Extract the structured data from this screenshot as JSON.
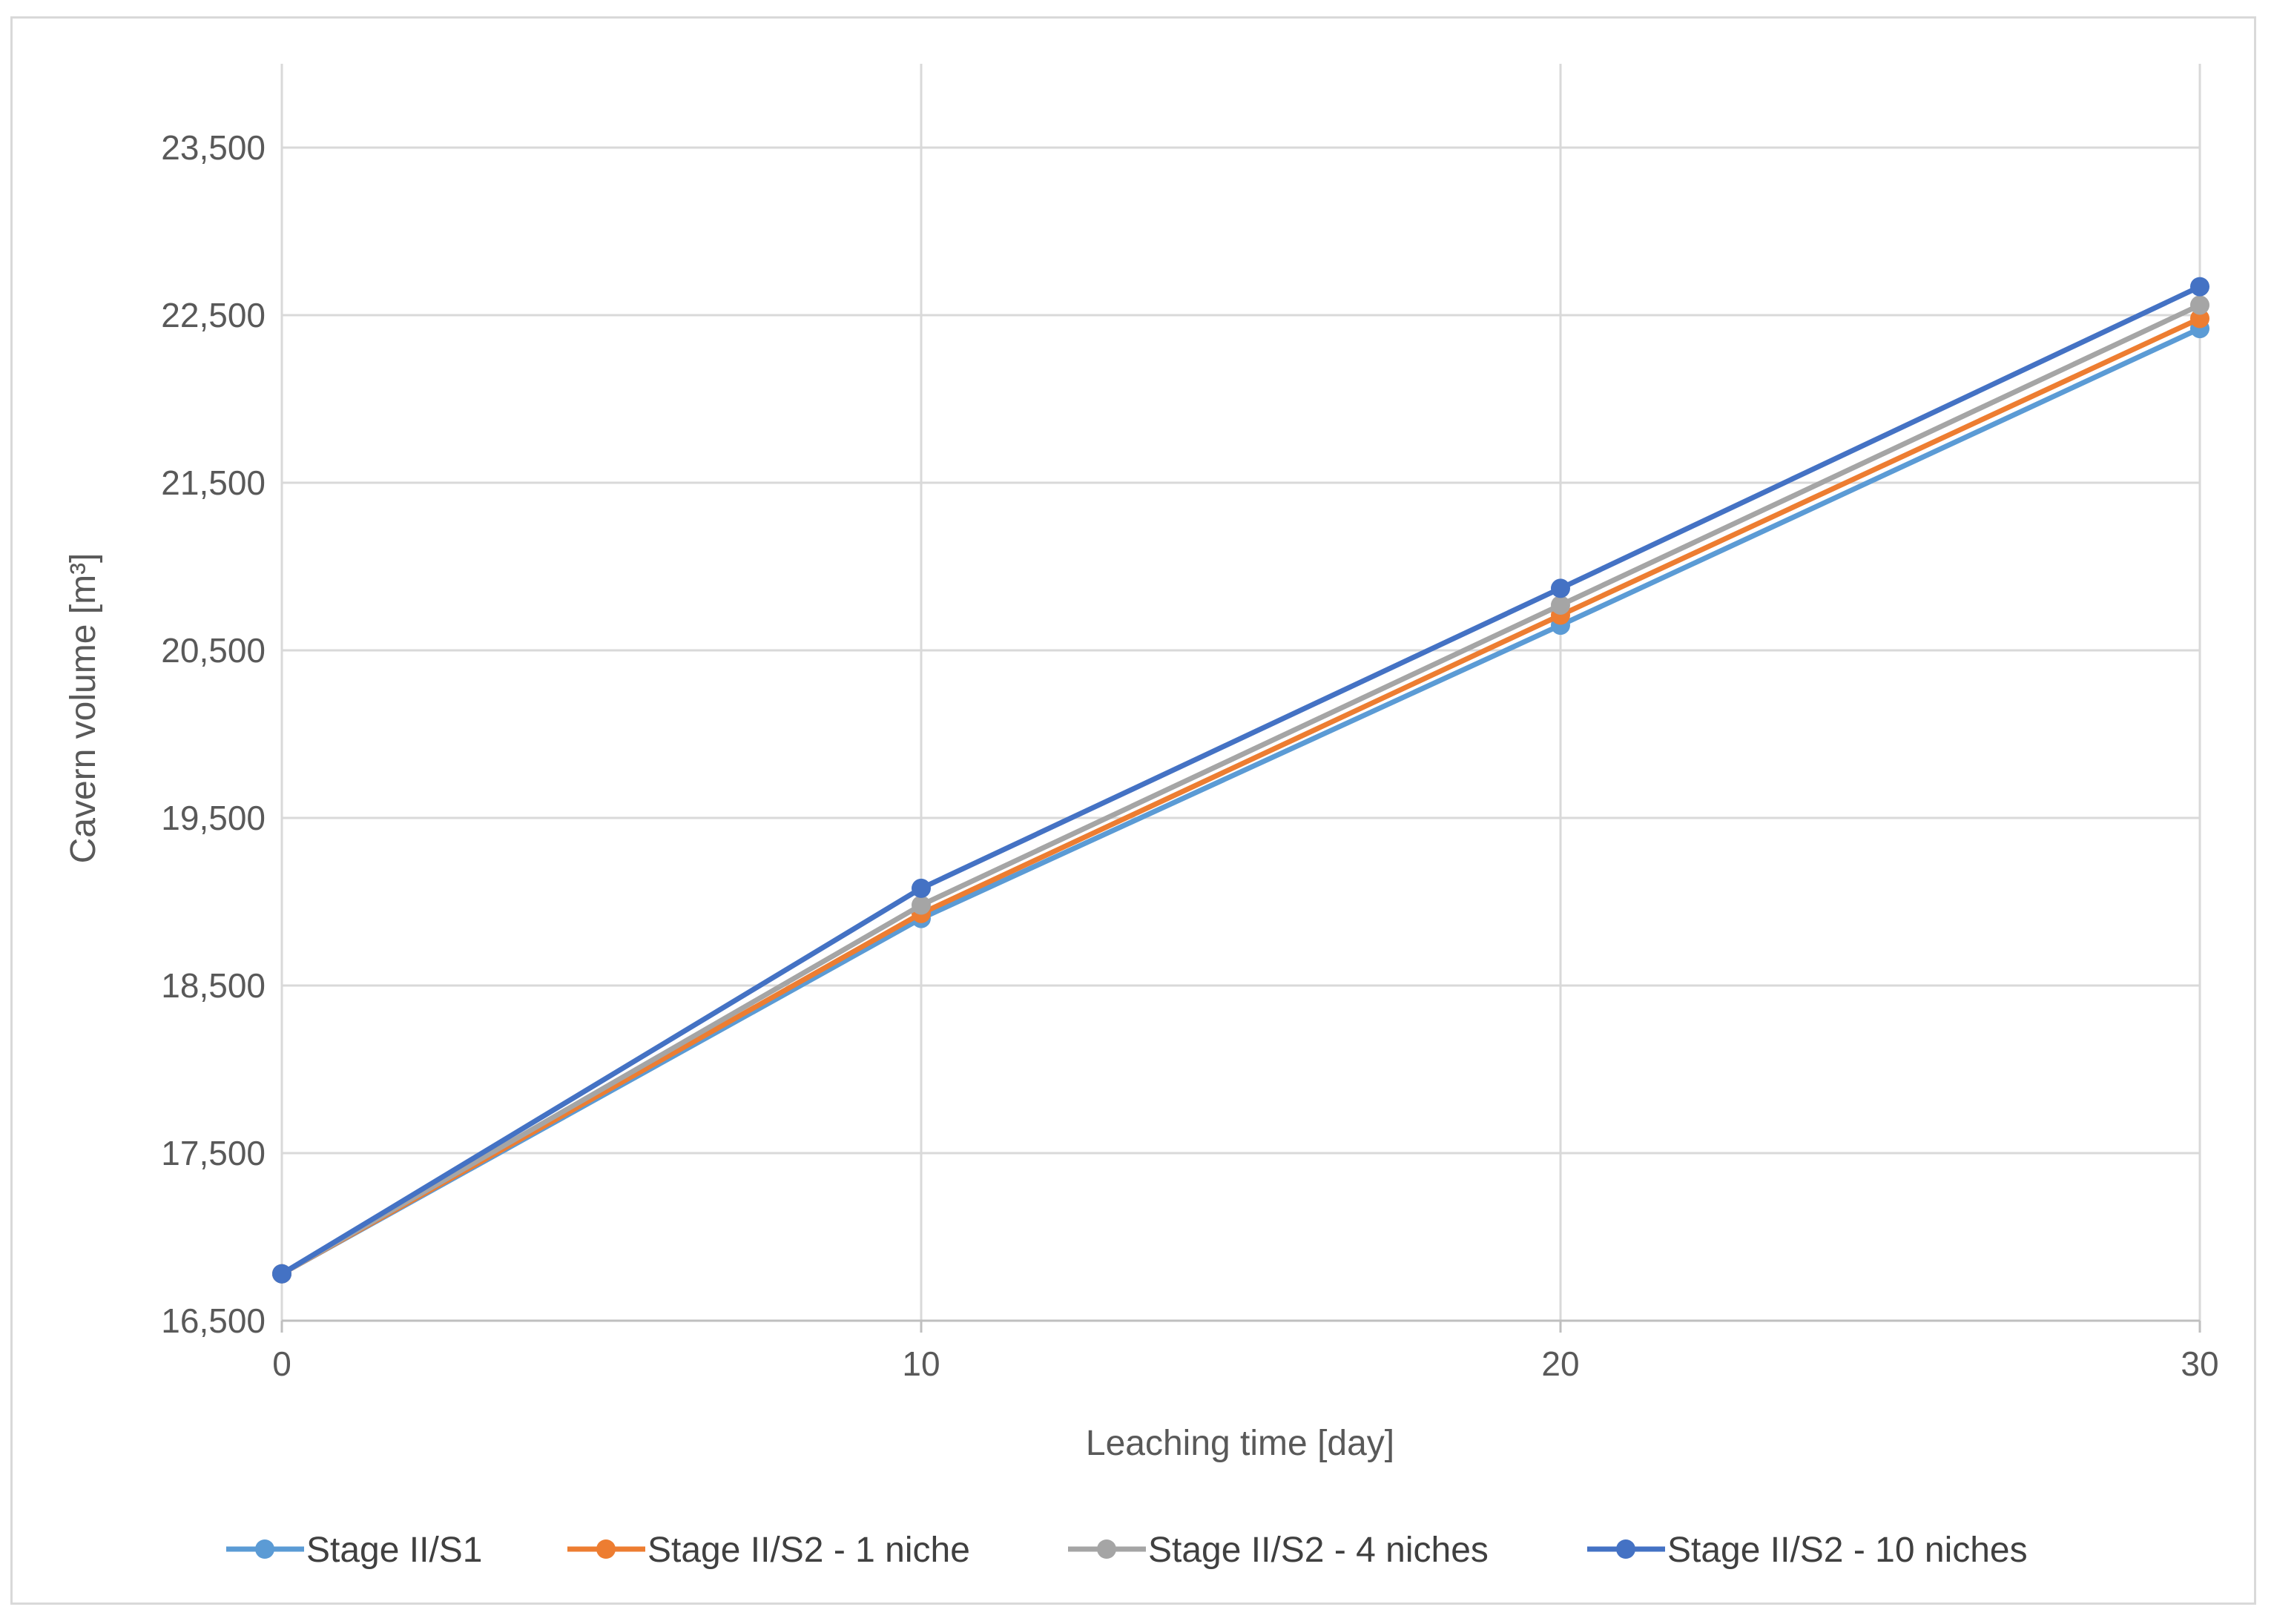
{
  "chart_data": {
    "type": "line",
    "title": "",
    "xlabel": "Leaching time [day]",
    "ylabel": "Cavern volume [m³]",
    "x": [
      0,
      10,
      20,
      30
    ],
    "xlim": [
      0,
      30
    ],
    "ylim": [
      16500,
      24000
    ],
    "x_ticks": [
      0,
      10,
      20,
      30
    ],
    "x_tick_labels": [
      "0",
      "10",
      "20",
      "30"
    ],
    "y_ticks": [
      16500,
      17500,
      18500,
      19500,
      20500,
      21500,
      22500,
      23500
    ],
    "y_tick_labels": [
      "16,500",
      "17,500",
      "18,500",
      "19,500",
      "20,500",
      "21,500",
      "22,500",
      "23,500"
    ],
    "grid": true,
    "legend_position": "bottom",
    "series": [
      {
        "name": "Stage II/S1",
        "color": "#5B9BD5",
        "values": [
          16780,
          18900,
          20650,
          22420
        ]
      },
      {
        "name": "Stage II/S2 - 1 niche",
        "color": "#ED7D31",
        "values": [
          16780,
          18930,
          20710,
          22480
        ]
      },
      {
        "name": "Stage II/S2 - 4 niches",
        "color": "#A5A5A5",
        "values": [
          16780,
          18980,
          20770,
          22560
        ]
      },
      {
        "name": "Stage II/S2 - 10 niches",
        "color": "#4472C4",
        "values": [
          16780,
          19080,
          20870,
          22670
        ]
      }
    ]
  }
}
